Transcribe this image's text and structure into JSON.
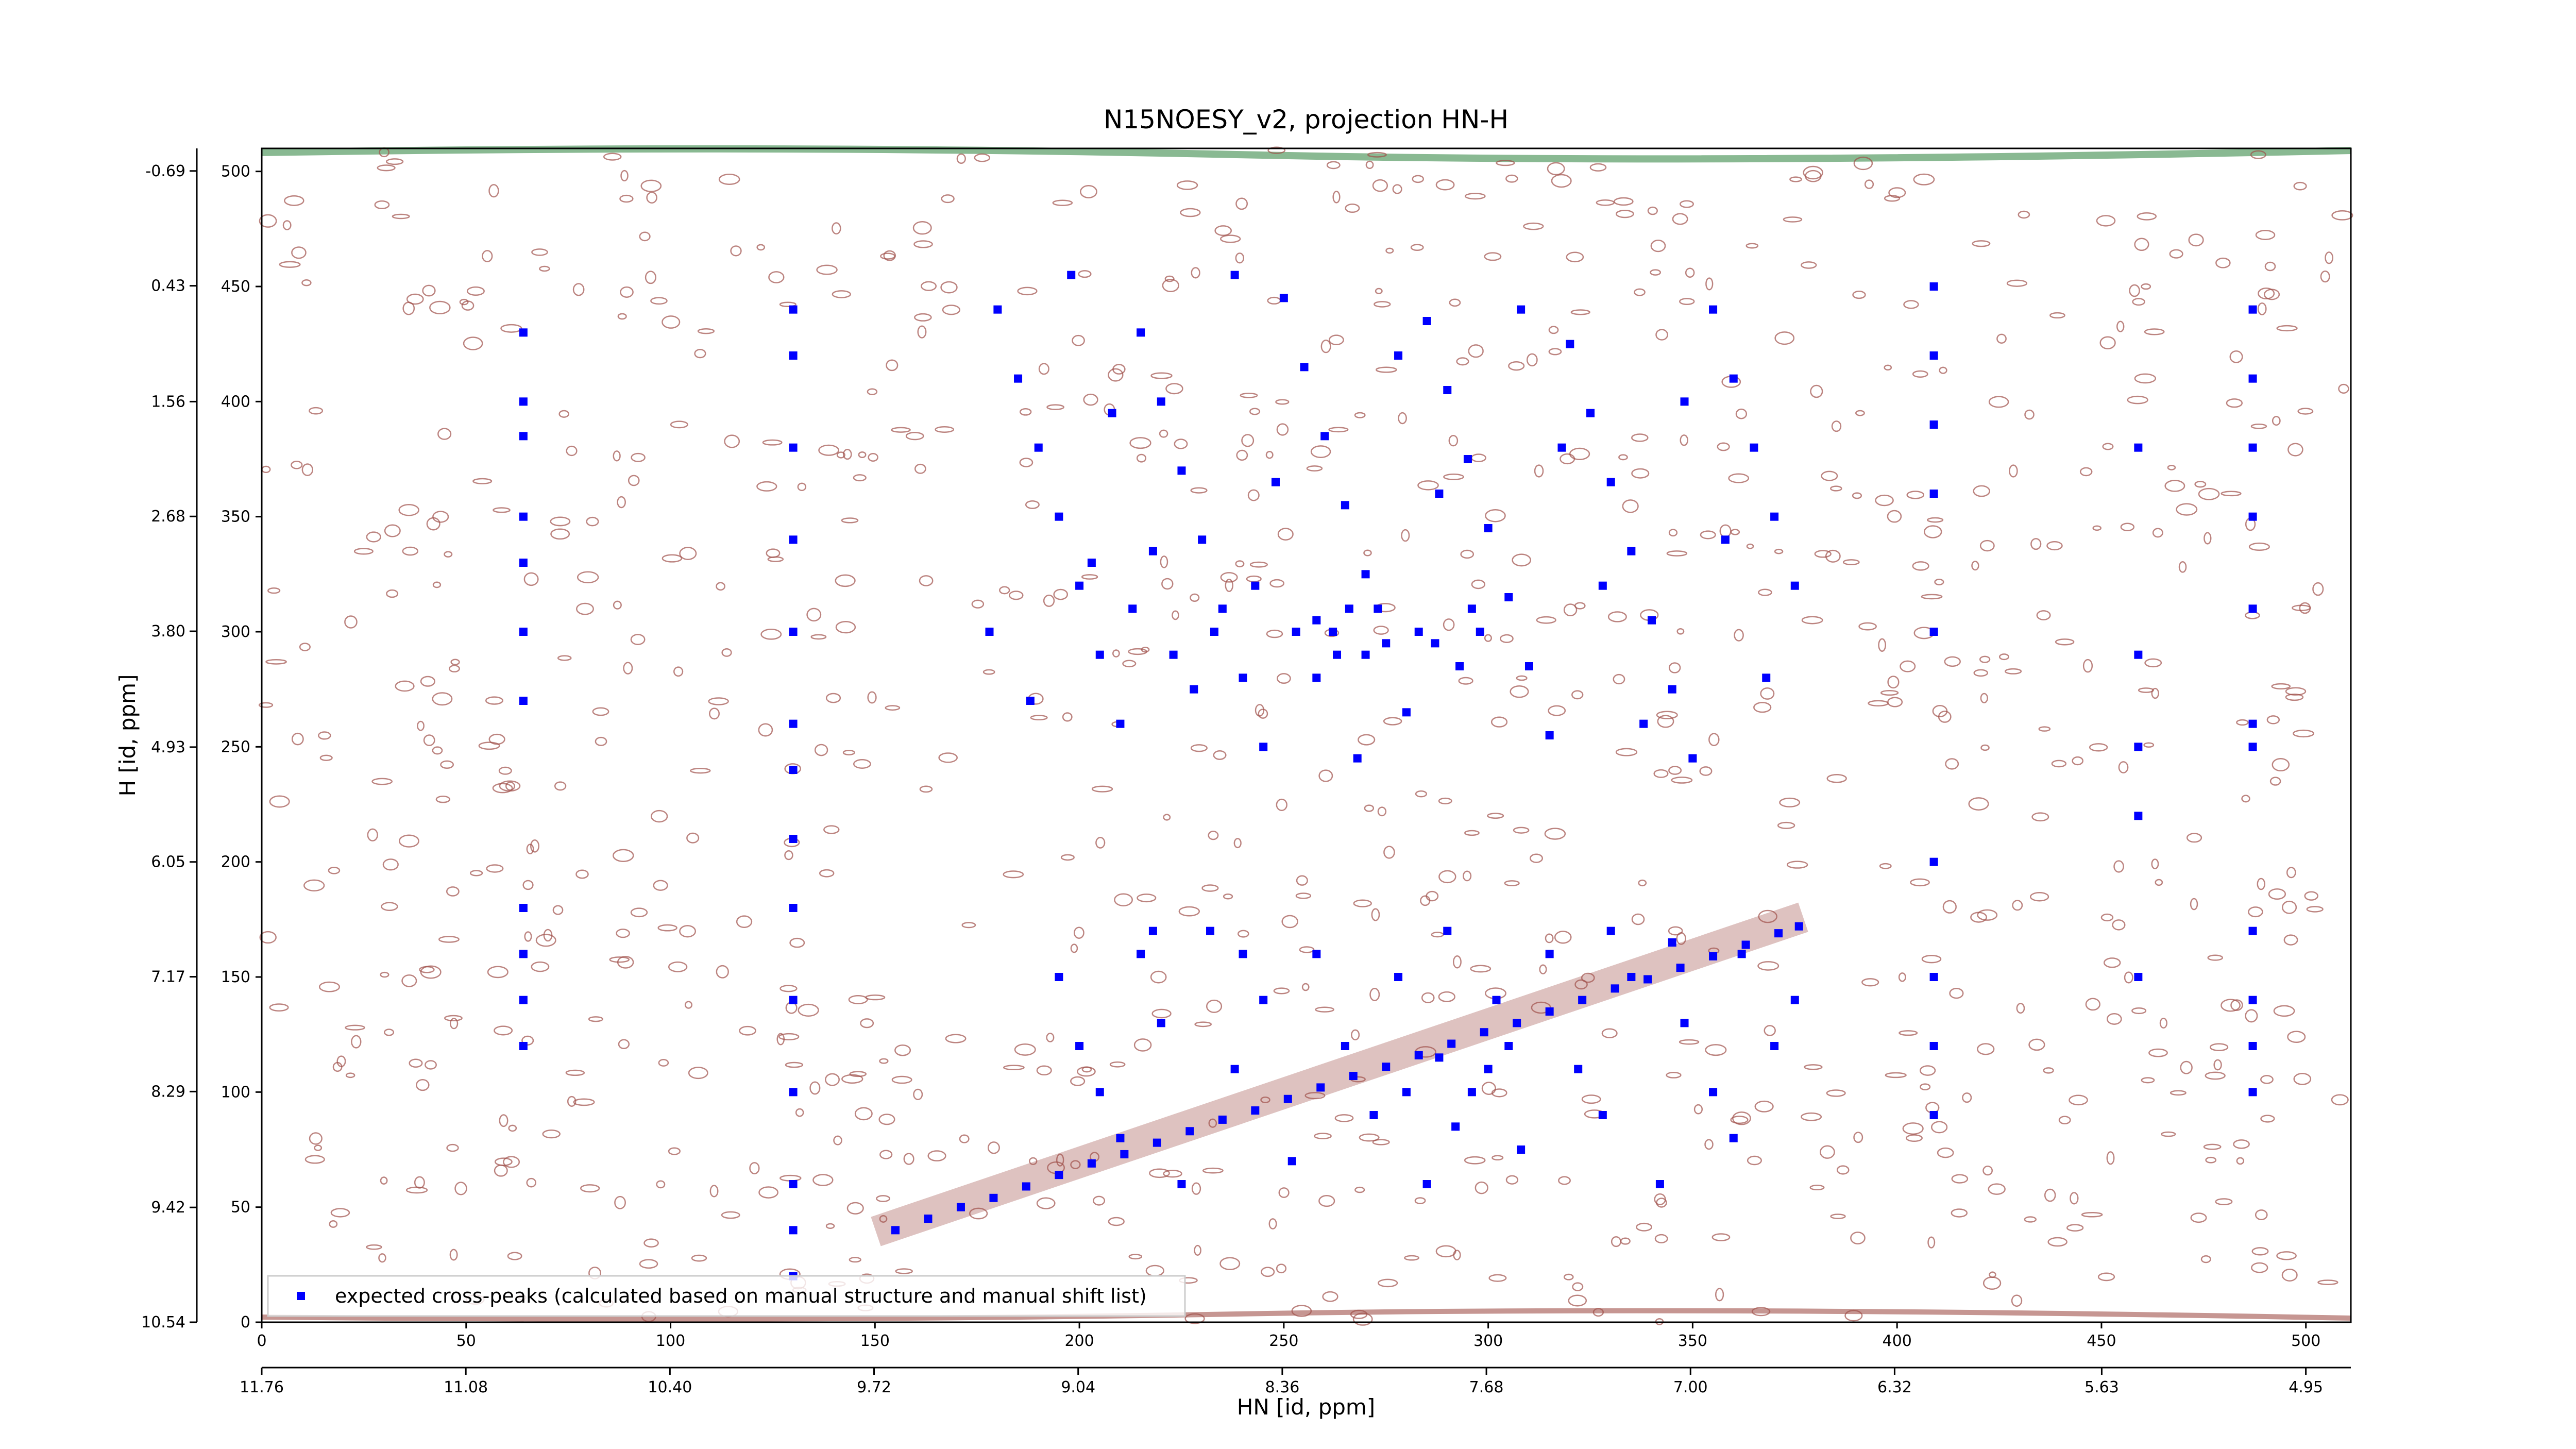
{
  "chart_data": {
    "type": "scatter",
    "title": "N15NOESY_v2, projection HN-H",
    "xlabel": "HN [id, ppm]",
    "ylabel": "H [id, ppm]",
    "xlim": [
      0,
      511
    ],
    "ylim": [
      0,
      510
    ],
    "xticks": [
      0,
      50,
      100,
      150,
      200,
      250,
      300,
      350,
      400,
      450,
      500
    ],
    "yticks": [
      0,
      50,
      100,
      150,
      200,
      250,
      300,
      350,
      400,
      450,
      500
    ],
    "x2lim": [
      11.76,
      4.8
    ],
    "x2ticks": [
      11.76,
      11.08,
      {
        "value": 10.4,
        "label": "10.40"
      },
      9.72,
      9.04,
      8.36,
      7.68,
      {
        "value": 7,
        "label": "7.00"
      },
      6.32,
      5.63,
      4.95
    ],
    "y2lim": [
      10.54,
      -0.91
    ],
    "y2ticks": [
      10.54,
      9.42,
      8.29,
      7.17,
      6.05,
      4.93,
      3.8,
      2.68,
      1.56,
      0.43,
      -0.69
    ],
    "y2tick_labels": [
      "10.54",
      "9.42",
      "8.29",
      "7.17",
      "6.05",
      "4.93",
      "3.80",
      "2.68",
      "1.56",
      "0.43",
      "-0.69"
    ],
    "legend": "lower left",
    "x": [
      155,
      163,
      171,
      179,
      187,
      195,
      203,
      211,
      219,
      227,
      235,
      243,
      251,
      259,
      267,
      275,
      283,
      291,
      299,
      307,
      315,
      323,
      331,
      339,
      347,
      355,
      363,
      371,
      376,
      64,
      64,
      64,
      64,
      64,
      64,
      64,
      64,
      64,
      64,
      64,
      130,
      130,
      130,
      130,
      130,
      130,
      130,
      130,
      130,
      130,
      130,
      130,
      130,
      130,
      409,
      409,
      409,
      409,
      409,
      409,
      409,
      409,
      409,
      487,
      487,
      487,
      487,
      487,
      487,
      487,
      487,
      487,
      487,
      487,
      459,
      459,
      459,
      459,
      459,
      180,
      185,
      190,
      195,
      200,
      205,
      210,
      215,
      220,
      225,
      230,
      235,
      240,
      245,
      250,
      255,
      260,
      265,
      270,
      275,
      280,
      285,
      290,
      295,
      300,
      305,
      310,
      315,
      320,
      325,
      330,
      335,
      340,
      345,
      350,
      355,
      360,
      365,
      370,
      375,
      178,
      188,
      198,
      208,
      218,
      228,
      238,
      248,
      258,
      268,
      278,
      288,
      298,
      308,
      318,
      328,
      338,
      348,
      358,
      368,
      203,
      213,
      223,
      233,
      243,
      253,
      263,
      273,
      283,
      293,
      262,
      266,
      258,
      270,
      287,
      296,
      195,
      200,
      205,
      210,
      215,
      220,
      225,
      232,
      238,
      245,
      252,
      258,
      265,
      272,
      278,
      285,
      290,
      296,
      302,
      308,
      315,
      322,
      328,
      335,
      342,
      348,
      355,
      362,
      370,
      375,
      288,
      292,
      300,
      280,
      305,
      240,
      218,
      330,
      345,
      360
    ],
    "series": [
      {
        "name": "expected cross-peaks (calculated based on manual structure and manual shift list)",
        "color": "#0000ff",
        "values": [
          40,
          45,
          50,
          54,
          59,
          64,
          69,
          73,
          78,
          83,
          88,
          92,
          97,
          102,
          107,
          111,
          116,
          121,
          126,
          130,
          135,
          140,
          145,
          149,
          154,
          159,
          164,
          169,
          172,
          430,
          400,
          385,
          350,
          330,
          300,
          270,
          180,
          160,
          140,
          120,
          440,
          420,
          380,
          340,
          300,
          260,
          240,
          210,
          180,
          140,
          100,
          60,
          40,
          20,
          450,
          420,
          390,
          360,
          300,
          200,
          150,
          120,
          90,
          440,
          410,
          380,
          350,
          310,
          260,
          250,
          170,
          140,
          120,
          100,
          380,
          290,
          250,
          220,
          150,
          440,
          410,
          380,
          350,
          320,
          290,
          260,
          430,
          400,
          370,
          340,
          310,
          280,
          250,
          445,
          415,
          385,
          355,
          325,
          295,
          265,
          435,
          405,
          375,
          345,
          315,
          285,
          255,
          425,
          395,
          365,
          335,
          305,
          275,
          245,
          440,
          410,
          380,
          350,
          320,
          300,
          270,
          455,
          395,
          335,
          275,
          455,
          365,
          305,
          245,
          420,
          360,
          300,
          440,
          380,
          320,
          260,
          400,
          340,
          280,
          330,
          310,
          290,
          300,
          320,
          300,
          290,
          310,
          300,
          285,
          300,
          310,
          280,
          290,
          295,
          310,
          150,
          120,
          100,
          80,
          160,
          130,
          60,
          170,
          110,
          140,
          70,
          160,
          120,
          90,
          150,
          60,
          170,
          100,
          140,
          75,
          160,
          110,
          90,
          150,
          60,
          130,
          100,
          160,
          120,
          140,
          115,
          85,
          110,
          100,
          120,
          160,
          170,
          170,
          165,
          80
        ]
      }
    ]
  }
}
